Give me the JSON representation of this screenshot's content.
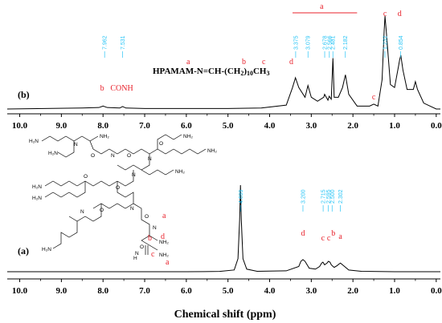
{
  "chart_data": [
    {
      "type": "line",
      "panel": "(b)",
      "formula": {
        "parts": [
          "HPAMAM-N=CH-(CH",
          "2",
          ")",
          "10",
          "CH",
          "3"
        ],
        "site_letters": [
          "a",
          "b",
          "c",
          "d"
        ]
      },
      "x_ticks": [
        "10.0",
        "9.0",
        "8.0",
        "7.0",
        "6.0",
        "5.0",
        "4.0",
        "3.0",
        "2.0",
        "1.0",
        "0.0"
      ],
      "xlim": [
        10.3,
        -0.1
      ],
      "peak_labels": [
        "7.962",
        "7.531",
        "3.375",
        "3.079",
        "2.678",
        "2.566",
        "2.481",
        "2.182",
        "1.232",
        "0.854"
      ],
      "assignments": [
        {
          "label": "b",
          "x": 8.02
        },
        {
          "label": "CONH",
          "x": 7.55
        },
        {
          "label": "a",
          "x": 2.75,
          "bracket": [
            3.45,
            1.9
          ]
        },
        {
          "label": "c",
          "x": 1.5
        },
        {
          "label": "c",
          "x": 1.23
        },
        {
          "label": "d",
          "x": 0.88
        }
      ],
      "series": [
        {
          "x": [
            10.3,
            8.5,
            8.1,
            8.0,
            7.9,
            7.6,
            7.53,
            7.45,
            7.0,
            6.0,
            5.0,
            4.2,
            3.6,
            3.45,
            3.38,
            3.3,
            3.15,
            3.08,
            3.0,
            2.85,
            2.7,
            2.68,
            2.6,
            2.57,
            2.52,
            2.48,
            2.45,
            2.35,
            2.25,
            2.18,
            2.1,
            1.9,
            1.6,
            1.5,
            1.4,
            1.3,
            1.25,
            1.23,
            1.2,
            1.1,
            1.0,
            0.9,
            0.88,
            0.85,
            0.8,
            0.7,
            0.55,
            0.5,
            0.45,
            0.3,
            0.0,
            -0.1
          ],
          "y": [
            0.0,
            0.01,
            0.015,
            0.03,
            0.015,
            0.01,
            0.025,
            0.01,
            0.005,
            0.005,
            0.005,
            0.01,
            0.04,
            0.22,
            0.32,
            0.22,
            0.12,
            0.24,
            0.12,
            0.08,
            0.12,
            0.15,
            0.09,
            0.13,
            0.1,
            0.52,
            0.12,
            0.12,
            0.22,
            0.35,
            0.15,
            0.03,
            0.03,
            0.05,
            0.03,
            0.3,
            0.8,
            0.95,
            0.8,
            0.25,
            0.22,
            0.45,
            0.5,
            0.55,
            0.4,
            0.2,
            0.2,
            0.28,
            0.2,
            0.06,
            0.0,
            0.0
          ]
        }
      ]
    },
    {
      "type": "line",
      "panel": "(a)",
      "x_ticks": [
        "10.0",
        "9.0",
        "8.0",
        "7.0",
        "6.0",
        "5.0",
        "4.0",
        "3.0",
        "2.0",
        "1.0",
        "0.0"
      ],
      "xlim": [
        10.3,
        -0.1
      ],
      "xlabel": "Chemical shift (ppm)",
      "peak_labels": [
        "4.699",
        "3.200",
        "2.715",
        "2.595",
        "2.500",
        "2.302"
      ],
      "assignments": [
        {
          "label": "d",
          "x": 3.2
        },
        {
          "label": "c",
          "x": 2.72
        },
        {
          "label": "c",
          "x": 2.58
        },
        {
          "label": "b",
          "x": 2.47
        },
        {
          "label": "a",
          "x": 2.3
        }
      ],
      "structure_letters": [
        "a",
        "d",
        "b",
        "c",
        "a"
      ],
      "series": [
        {
          "x": [
            10.3,
            8.0,
            6.0,
            5.2,
            4.85,
            4.76,
            4.72,
            4.7,
            4.68,
            4.64,
            4.55,
            4.3,
            3.6,
            3.3,
            3.25,
            3.2,
            3.15,
            3.05,
            2.9,
            2.8,
            2.75,
            2.72,
            2.68,
            2.62,
            2.59,
            2.55,
            2.52,
            2.5,
            2.45,
            2.38,
            2.33,
            2.3,
            2.25,
            2.1,
            1.8,
            1.0,
            0.0,
            -0.1
          ],
          "y": [
            0.0,
            0.0,
            0.0,
            0.003,
            0.02,
            0.15,
            0.6,
            1.0,
            0.6,
            0.15,
            0.03,
            0.005,
            0.01,
            0.06,
            0.12,
            0.14,
            0.12,
            0.04,
            0.03,
            0.06,
            0.1,
            0.11,
            0.08,
            0.1,
            0.12,
            0.11,
            0.08,
            0.07,
            0.05,
            0.07,
            0.09,
            0.1,
            0.08,
            0.02,
            0.005,
            0.0,
            0.0,
            0.0
          ]
        }
      ]
    }
  ],
  "colors": {
    "spectrum": "#000000",
    "peak_label": "#29c5f6",
    "assignment": "#e8212b"
  }
}
